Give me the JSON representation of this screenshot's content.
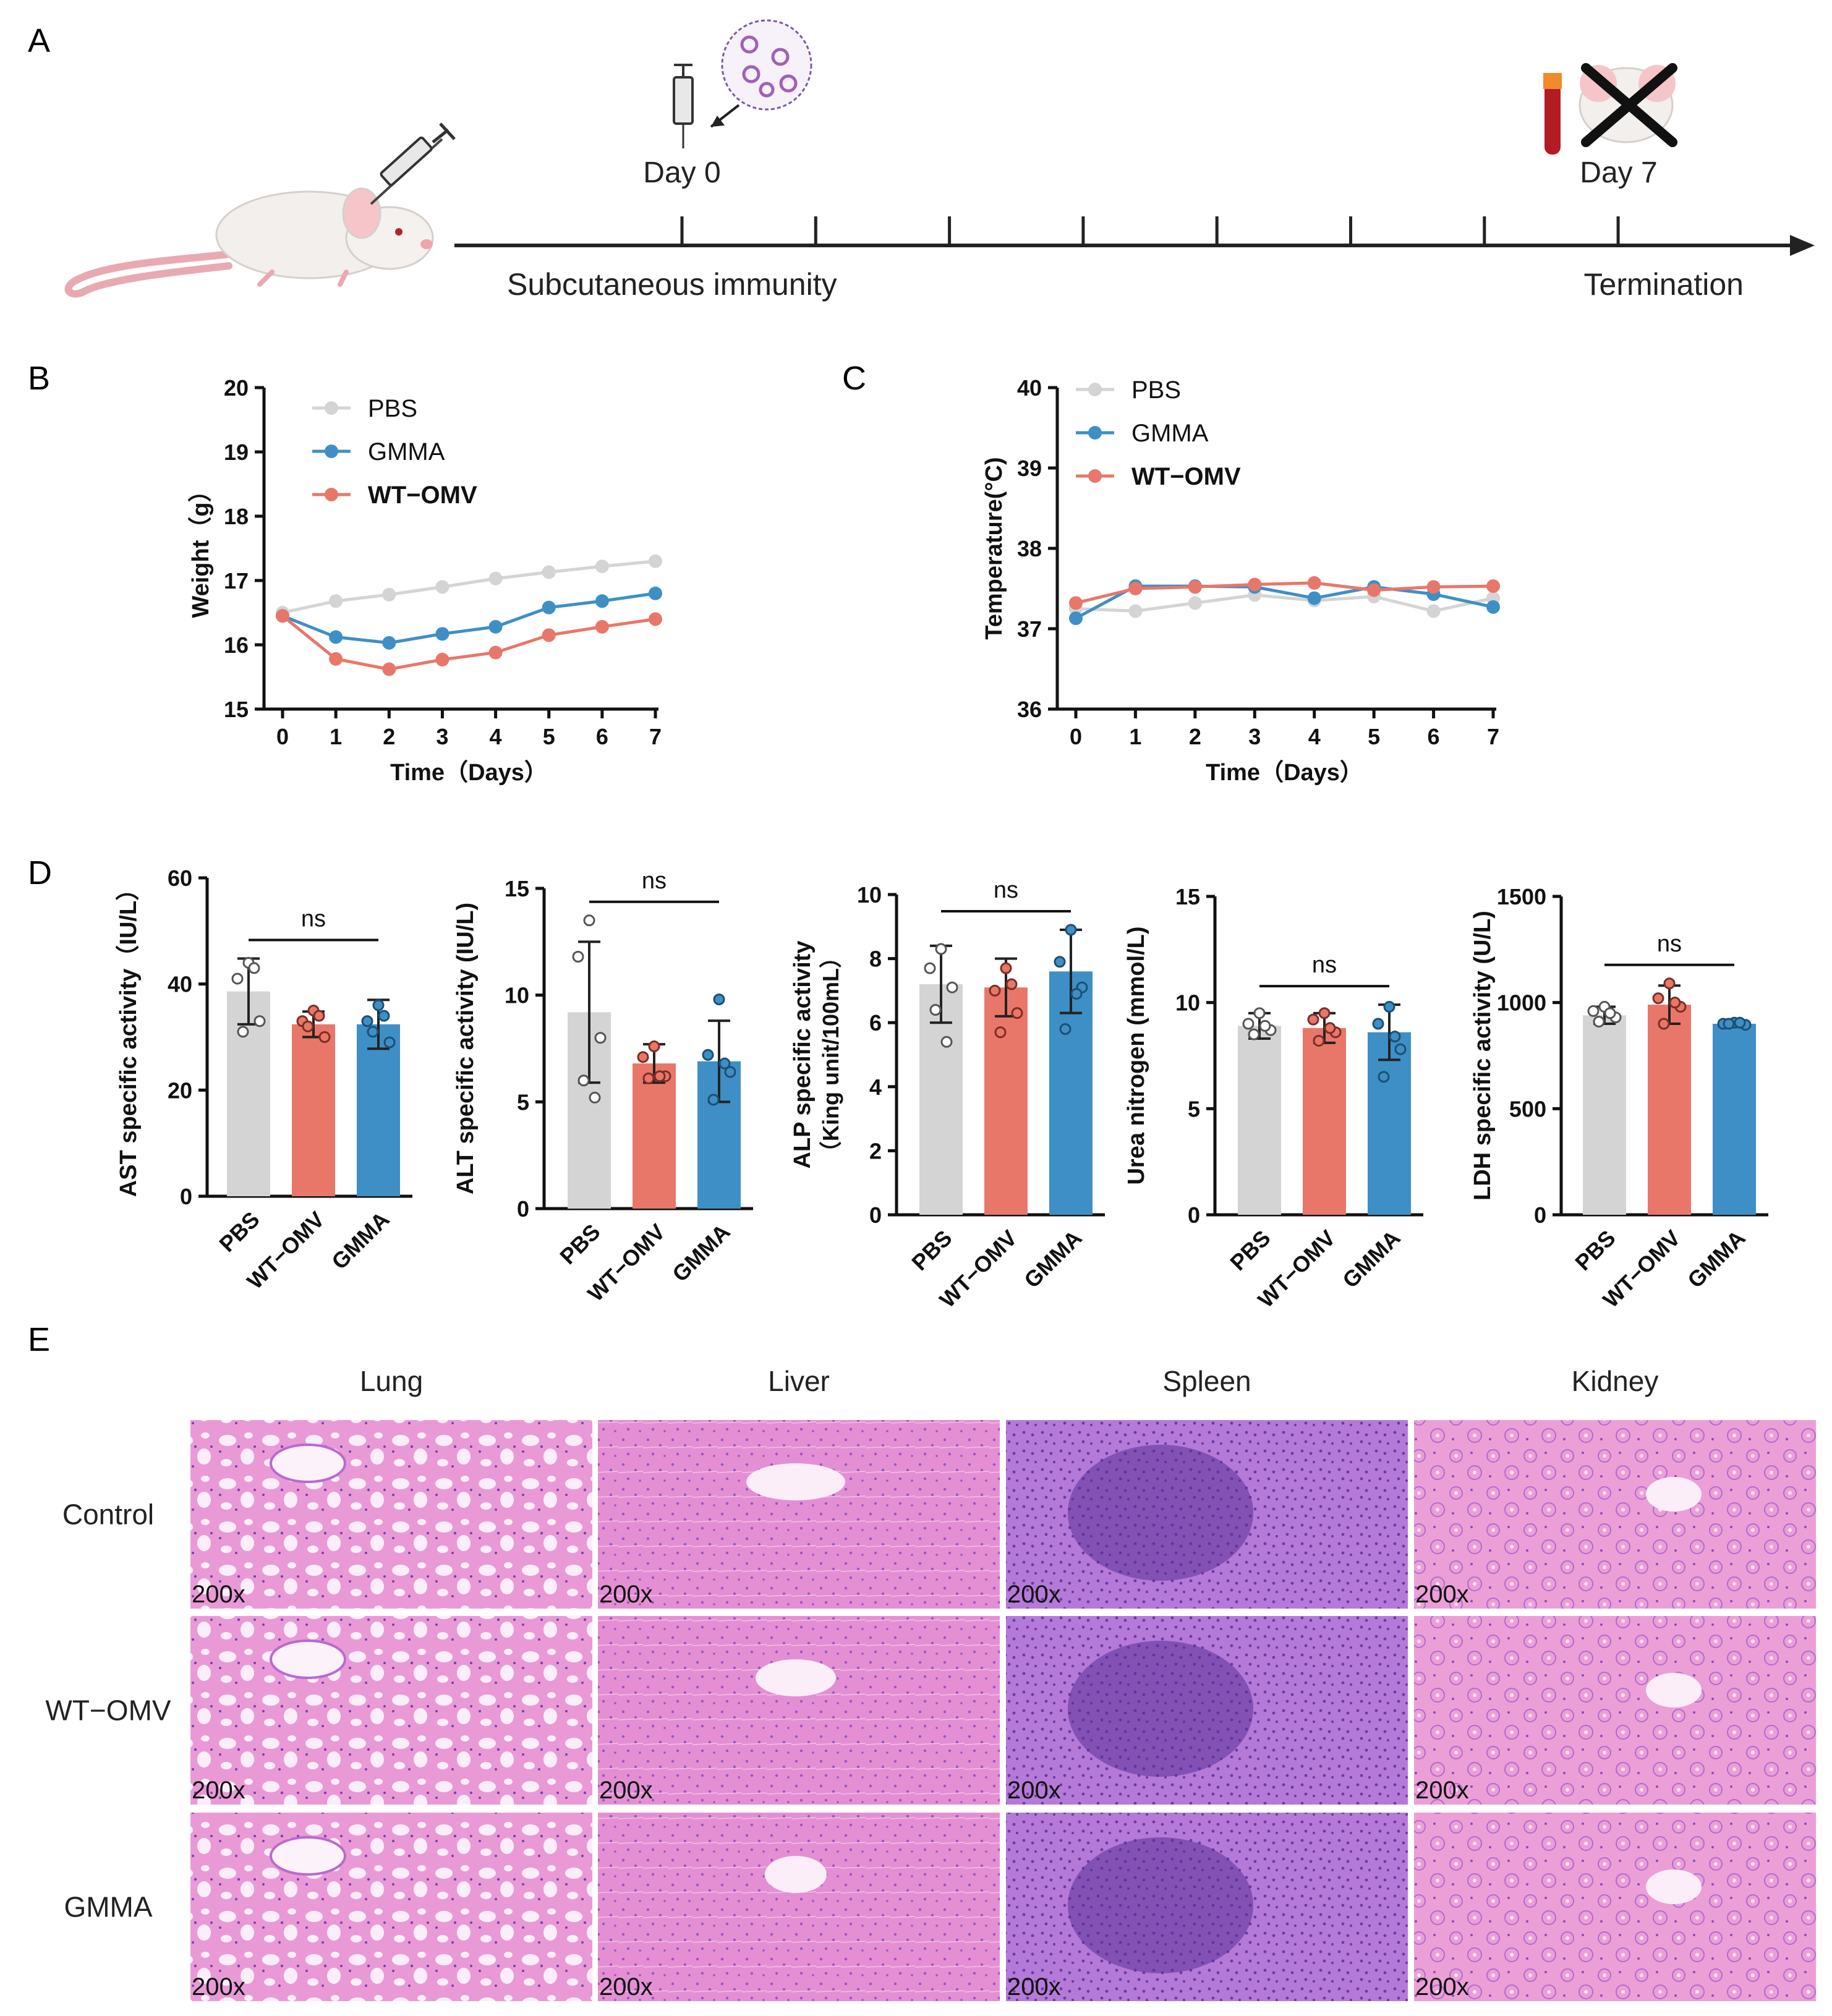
{
  "panel_labels": {
    "a": "A",
    "b": "B",
    "c": "C",
    "d": "D",
    "e": "E"
  },
  "colors": {
    "pbs": "#d4d4d4",
    "gmma": "#3e8fc6",
    "wt_omv": "#e8776a",
    "axis": "#111111",
    "he_pink": "#e08bd0",
    "he_purple": "#a85fc6"
  },
  "timeline": {
    "day0": "Day 0",
    "day7": "Day 7",
    "start_label": "Subcutaneous immunity",
    "end_label": "Termination"
  },
  "chart_data": [
    {
      "id": "weight",
      "type": "line",
      "xlabel": "Time（Days）",
      "ylabel": "Weight（g）",
      "ylim": [
        15,
        20
      ],
      "yticks": [
        "15",
        "16",
        "17",
        "18",
        "19",
        "20"
      ],
      "x": [
        0,
        1,
        2,
        3,
        4,
        5,
        6,
        7
      ],
      "xticks": [
        "0",
        "1",
        "2",
        "3",
        "4",
        "5",
        "6",
        "7"
      ],
      "legend": [
        "PBS",
        "GMMA",
        "WT−OMV"
      ],
      "series": [
        {
          "name": "PBS",
          "color": "#d4d4d4",
          "values": [
            16.5,
            16.68,
            16.78,
            16.9,
            17.03,
            17.13,
            17.22,
            17.3
          ]
        },
        {
          "name": "GMMA",
          "color": "#3e8fc6",
          "values": [
            16.45,
            16.12,
            16.03,
            16.17,
            16.28,
            16.58,
            16.68,
            16.8
          ]
        },
        {
          "name": "WT−OMV",
          "color": "#e8776a",
          "values": [
            16.45,
            15.78,
            15.62,
            15.77,
            15.88,
            16.15,
            16.28,
            16.4
          ]
        }
      ]
    },
    {
      "id": "temperature",
      "type": "line",
      "xlabel": "Time（Days）",
      "ylabel": "Temperature(°C)",
      "ylim": [
        36,
        40
      ],
      "yticks": [
        "36",
        "37",
        "38",
        "39",
        "40"
      ],
      "x": [
        0,
        1,
        2,
        3,
        4,
        5,
        6,
        7
      ],
      "xticks": [
        "0",
        "1",
        "2",
        "3",
        "4",
        "5",
        "6",
        "7"
      ],
      "legend": [
        "PBS",
        "GMMA",
        "WT−OMV"
      ],
      "series": [
        {
          "name": "PBS",
          "color": "#d4d4d4",
          "values": [
            37.25,
            37.22,
            37.32,
            37.42,
            37.35,
            37.4,
            37.22,
            37.38
          ]
        },
        {
          "name": "GMMA",
          "color": "#3e8fc6",
          "values": [
            37.13,
            37.53,
            37.53,
            37.52,
            37.38,
            37.52,
            37.43,
            37.27
          ]
        },
        {
          "name": "WT−OMV",
          "color": "#e8776a",
          "values": [
            37.32,
            37.5,
            37.52,
            37.55,
            37.57,
            37.48,
            37.52,
            37.53
          ]
        }
      ]
    },
    {
      "id": "ast",
      "type": "bar",
      "ylabel": "AST specific activity（IU/L）",
      "ylim": [
        0,
        60
      ],
      "yticks": [
        "0",
        "20",
        "40",
        "60"
      ],
      "categories": [
        "PBS",
        "WT−OMV",
        "GMMA"
      ],
      "values": [
        38.6,
        32.4,
        32.4
      ],
      "errors": [
        6.2,
        2.4,
        4.6
      ],
      "points": [
        [
          44,
          41,
          33,
          31,
          43
        ],
        [
          35,
          33,
          30,
          32,
          34
        ],
        [
          36,
          33,
          29,
          31,
          34
        ]
      ],
      "annotation": "ns"
    },
    {
      "id": "alt",
      "type": "bar",
      "ylabel": "ALT specific activity (IU/L)",
      "ylim": [
        0,
        15
      ],
      "yticks": [
        "0",
        "5",
        "10",
        "15"
      ],
      "categories": [
        "PBS",
        "WT−OMV",
        "GMMA"
      ],
      "values": [
        9.2,
        6.8,
        6.9
      ],
      "errors": [
        3.3,
        0.9,
        1.9
      ],
      "points": [
        [
          13.5,
          11.8,
          8.0,
          6.0,
          5.2
        ],
        [
          7.6,
          7.1,
          6.2,
          6.1,
          6.2
        ],
        [
          9.8,
          7.2,
          6.4,
          5.1,
          6.8
        ]
      ],
      "annotation": "ns"
    },
    {
      "id": "alp",
      "type": "bar",
      "ylabel": "ALP specific activity",
      "ylabel2": "（King unit/100mL）",
      "ylim": [
        0,
        10
      ],
      "yticks": [
        "0",
        "2",
        "4",
        "6",
        "8",
        "10"
      ],
      "categories": [
        "PBS",
        "WT−OMV",
        "GMMA"
      ],
      "values": [
        7.2,
        7.1,
        7.6
      ],
      "errors": [
        1.2,
        0.9,
        1.3
      ],
      "points": [
        [
          8.3,
          7.7,
          7.1,
          6.4,
          5.4
        ],
        [
          7.7,
          7.0,
          6.3,
          5.7,
          7.2
        ],
        [
          8.9,
          7.9,
          7.1,
          5.8,
          6.9
        ]
      ],
      "annotation": "ns"
    },
    {
      "id": "urea",
      "type": "bar",
      "ylabel": "Urea nitrogen (mmol/L)",
      "ylim": [
        0,
        15
      ],
      "yticks": [
        "0",
        "5",
        "10",
        "15"
      ],
      "categories": [
        "PBS",
        "WT−OMV",
        "GMMA"
      ],
      "values": [
        8.9,
        8.8,
        8.6
      ],
      "errors": [
        0.6,
        0.7,
        1.3
      ],
      "points": [
        [
          9.5,
          9.0,
          8.7,
          8.5,
          8.9
        ],
        [
          9.5,
          9.2,
          8.6,
          8.2,
          8.8
        ],
        [
          9.8,
          9.0,
          7.8,
          6.5,
          8.4
        ]
      ],
      "annotation": "ns"
    },
    {
      "id": "ldh",
      "type": "bar",
      "ylabel": "LDH specific activity (U/L)",
      "ylim": [
        0,
        1500
      ],
      "yticks": [
        "0",
        "500",
        "1000",
        "1500"
      ],
      "categories": [
        "PBS",
        "WT−OMV",
        "GMMA"
      ],
      "values": [
        940,
        990,
        900
      ],
      "errors": [
        40,
        90,
        12
      ],
      "points": [
        [
          980,
          960,
          930,
          910,
          950
        ],
        [
          1090,
          1020,
          980,
          900,
          1000
        ],
        [
          905,
          900,
          895,
          900,
          905
        ]
      ],
      "annotation": "ns"
    }
  ],
  "histology": {
    "columns": [
      "Lung",
      "Liver",
      "Spleen",
      "Kidney"
    ],
    "rows": [
      "Control",
      "WT−OMV",
      "GMMA"
    ],
    "magnification": "200x"
  }
}
